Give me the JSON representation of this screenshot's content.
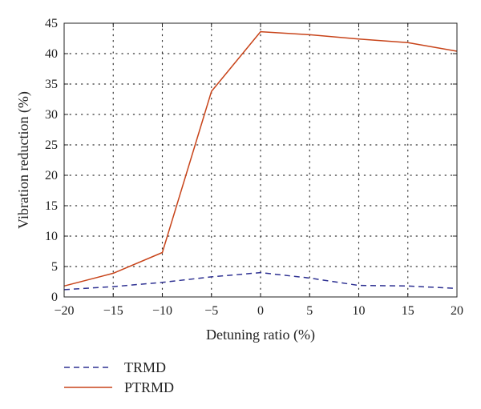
{
  "chart_data": {
    "type": "line",
    "xlabel": "Detuning ratio (%)",
    "ylabel": "Vibration reduction (%)",
    "xlim": [
      -20,
      20
    ],
    "ylim": [
      0,
      45
    ],
    "xticks": [
      -20,
      -15,
      -10,
      -5,
      0,
      5,
      10,
      15,
      20
    ],
    "yticks": [
      0,
      5,
      10,
      15,
      20,
      25,
      30,
      35,
      40,
      45
    ],
    "xtick_labels": [
      "−20",
      "−15",
      "−10",
      "−5",
      "0",
      "5",
      "10",
      "15",
      "20"
    ],
    "ytick_labels": [
      "0",
      "5",
      "10",
      "15",
      "20",
      "25",
      "30",
      "35",
      "40",
      "45"
    ],
    "grid": true,
    "legend_position": "bottom-left, below plot",
    "series": [
      {
        "name": "TRMD",
        "style": "dashed",
        "color": "#2e3192",
        "x": [
          -20,
          -15,
          -10,
          -5,
          0,
          5,
          10,
          15,
          20
        ],
        "y": [
          1.2,
          1.7,
          2.4,
          3.3,
          4.0,
          3.1,
          1.9,
          1.8,
          1.4
        ]
      },
      {
        "name": "PTRMD",
        "style": "solid",
        "color": "#c8441a",
        "x": [
          -20,
          -15,
          -10,
          -5,
          0,
          5,
          10,
          15,
          20
        ],
        "y": [
          1.8,
          3.9,
          7.3,
          33.8,
          43.6,
          43.1,
          42.4,
          41.8,
          40.4
        ]
      }
    ]
  }
}
